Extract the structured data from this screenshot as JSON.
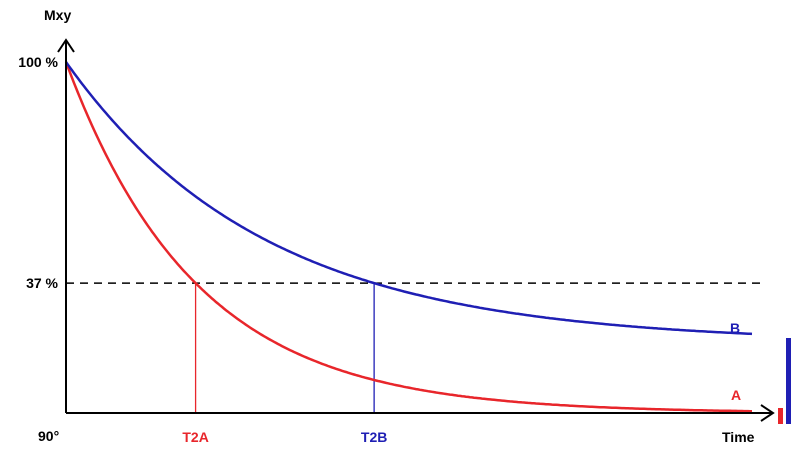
{
  "chart_data": {
    "type": "line",
    "title": "",
    "ylabel": "Mxy",
    "xlabel": "Time",
    "x_origin_label": "90°",
    "y_ticks": [
      {
        "label": "100 %",
        "value": 100
      },
      {
        "label": "37 %",
        "value": 37
      }
    ],
    "reference_line": {
      "value": 37,
      "style": "dashed"
    },
    "x_markers": [
      {
        "label": "T2A",
        "series": "A",
        "color": "#e8262b"
      },
      {
        "label": "T2B",
        "series": "B",
        "color": "#1f1fb4"
      }
    ],
    "series": [
      {
        "name": "A",
        "color": "#e8262b",
        "t2_fraction_of_axis": 0.19,
        "asymptote": 0
      },
      {
        "name": "B",
        "color": "#1f1fb4",
        "t2_fraction_of_axis": 0.29,
        "asymptote": 20
      }
    ],
    "grid": false,
    "legend": "inline-right"
  },
  "colors": {
    "axis": "#000000",
    "series_a": "#e8262b",
    "series_b": "#1f1fb4"
  }
}
